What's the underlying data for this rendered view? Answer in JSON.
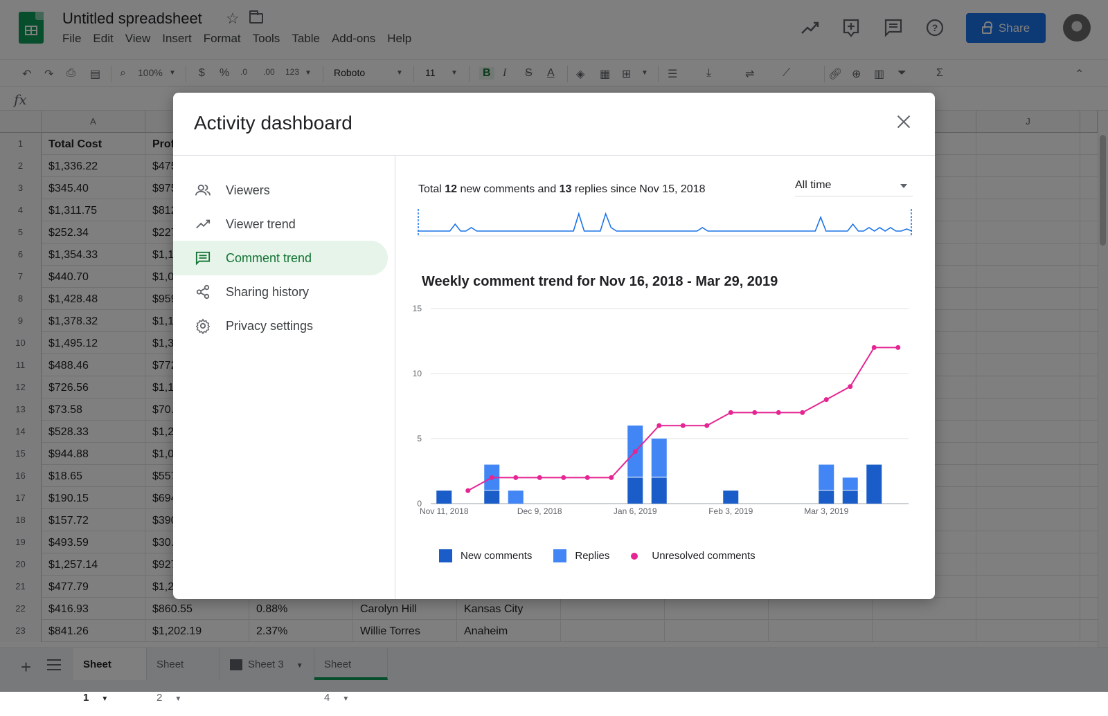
{
  "app": {
    "doc_title": "Untitled spreadsheet",
    "menu": [
      "File",
      "Edit",
      "View",
      "Insert",
      "Format",
      "Tools",
      "Table",
      "Add-ons",
      "Help"
    ],
    "share_label": "Share"
  },
  "toolbar": {
    "zoom": "100%",
    "currency": "$",
    "percent": "%",
    "dec_less": ".0",
    "dec_more": ".00",
    "number_format": "123",
    "font": "Roboto",
    "font_size": "11",
    "bold": "B",
    "italic": "I",
    "strike": "S",
    "text_color": "A",
    "sum": "Σ"
  },
  "formula": {
    "fx": "fx"
  },
  "sheet": {
    "col_a": "A",
    "col_j": "J",
    "header_a": "Total Cost",
    "header_b": "Prof",
    "rows": [
      {
        "n": "1",
        "a": "Total Cost",
        "b": "Prof"
      },
      {
        "n": "2",
        "a": "$1,336.22",
        "b": "$475"
      },
      {
        "n": "3",
        "a": "$345.40",
        "b": "$975"
      },
      {
        "n": "4",
        "a": "$1,311.75",
        "b": "$812"
      },
      {
        "n": "5",
        "a": "$252.34",
        "b": "$227"
      },
      {
        "n": "6",
        "a": "$1,354.33",
        "b": "$1,1"
      },
      {
        "n": "7",
        "a": "$440.70",
        "b": "$1,0"
      },
      {
        "n": "8",
        "a": "$1,428.48",
        "b": "$959"
      },
      {
        "n": "9",
        "a": "$1,378.32",
        "b": "$1,1"
      },
      {
        "n": "10",
        "a": "$1,495.12",
        "b": "$1,3"
      },
      {
        "n": "11",
        "a": "$488.46",
        "b": "$772"
      },
      {
        "n": "12",
        "a": "$726.56",
        "b": "$1,1"
      },
      {
        "n": "13",
        "a": "$73.58",
        "b": "$70."
      },
      {
        "n": "14",
        "a": "$528.33",
        "b": "$1,2"
      },
      {
        "n": "15",
        "a": "$944.88",
        "b": "$1,0"
      },
      {
        "n": "16",
        "a": "$18.65",
        "b": "$557"
      },
      {
        "n": "17",
        "a": "$190.15",
        "b": "$694"
      },
      {
        "n": "18",
        "a": "$157.72",
        "b": "$390"
      },
      {
        "n": "19",
        "a": "$493.59",
        "b": "$30."
      },
      {
        "n": "20",
        "a": "$1,257.14",
        "b": "$927"
      },
      {
        "n": "21",
        "a": "$477.79",
        "b": "$1,2"
      },
      {
        "n": "22",
        "a": "$416.93",
        "b": "$860.55",
        "c": "0.88%",
        "d": "Carolyn Hill",
        "e": "Kansas City"
      },
      {
        "n": "23",
        "a": "$841.26",
        "b": "$1,202.19",
        "c": "2.37%",
        "d": "Willie Torres",
        "e": "Anaheim"
      }
    ],
    "tabs": [
      "Sheet 1",
      "Sheet 2",
      "Sheet 3",
      "Sheet 4"
    ]
  },
  "dialog": {
    "title": "Activity dashboard",
    "nav": [
      {
        "label": "Viewers",
        "icon": "people-icon"
      },
      {
        "label": "Viewer trend",
        "icon": "trend-icon"
      },
      {
        "label": "Comment trend",
        "icon": "comment-icon"
      },
      {
        "label": "Sharing history",
        "icon": "share-icon"
      },
      {
        "label": "Privacy settings",
        "icon": "gear-icon"
      }
    ],
    "summary_pre": "Total ",
    "summary_comments": "12",
    "summary_mid": " new comments and ",
    "summary_replies": "13",
    "summary_post": " replies since Nov 15, 2018",
    "range_select": "All time",
    "legend": {
      "new": "New comments",
      "replies": "Replies",
      "unresolved": "Unresolved comments"
    }
  },
  "colors": {
    "new_comments": "#1a5dc8",
    "replies": "#4285f4",
    "unresolved": "#e52592",
    "accent_green": "#137333"
  },
  "chart_data": {
    "type": "bar",
    "title": "Weekly comment trend for Nov 16, 2018 - Mar 29, 2019",
    "xlabel": "",
    "ylabel": "",
    "ylim": [
      0,
      15
    ],
    "yticks": [
      0,
      5,
      10,
      15
    ],
    "x_tick_labels": [
      "Nov 11, 2018",
      "Dec 9, 2018",
      "Jan 6, 2019",
      "Feb 3, 2019",
      "Mar 3, 2019"
    ],
    "x_tick_week_index": [
      0,
      4,
      8,
      12,
      16
    ],
    "weeks": 20,
    "grid": true,
    "legend_position": "bottom",
    "series": [
      {
        "name": "New comments",
        "kind": "stacked-bar",
        "values": [
          1,
          0,
          1,
          0,
          0,
          0,
          0,
          0,
          2,
          2,
          0,
          0,
          1,
          0,
          0,
          0,
          1,
          1,
          3,
          0
        ]
      },
      {
        "name": "Replies",
        "kind": "stacked-bar",
        "values": [
          0,
          0,
          2,
          1,
          0,
          0,
          0,
          0,
          4,
          3,
          0,
          0,
          0,
          0,
          0,
          0,
          2,
          1,
          0,
          0
        ]
      },
      {
        "name": "Unresolved comments",
        "kind": "line",
        "values": [
          null,
          1,
          2,
          2,
          2,
          2,
          2,
          2,
          4,
          6,
          6,
          6,
          7,
          7,
          7,
          7,
          8,
          9,
          12,
          12
        ]
      }
    ],
    "sparkline": {
      "values": [
        0,
        0,
        0,
        0,
        0,
        0,
        0,
        1,
        0,
        0,
        0.5,
        0,
        0,
        0,
        0,
        0,
        0,
        0,
        0,
        0,
        0,
        0,
        0,
        0,
        0,
        0,
        0,
        0,
        0,
        0,
        2.5,
        0,
        0,
        0,
        0,
        2.5,
        0.5,
        0,
        0,
        0,
        0,
        0,
        0,
        0,
        0,
        0,
        0,
        0,
        0,
        0,
        0,
        0,
        0,
        0.5,
        0,
        0,
        0,
        0,
        0,
        0,
        0,
        0,
        0,
        0,
        0,
        0,
        0,
        0,
        0,
        0,
        0,
        0,
        0,
        0,
        0,
        2,
        0,
        0,
        0,
        0,
        0,
        1,
        0,
        0,
        0.5,
        0,
        0.5,
        0,
        0.5,
        0,
        0,
        0.3,
        0
      ]
    }
  }
}
